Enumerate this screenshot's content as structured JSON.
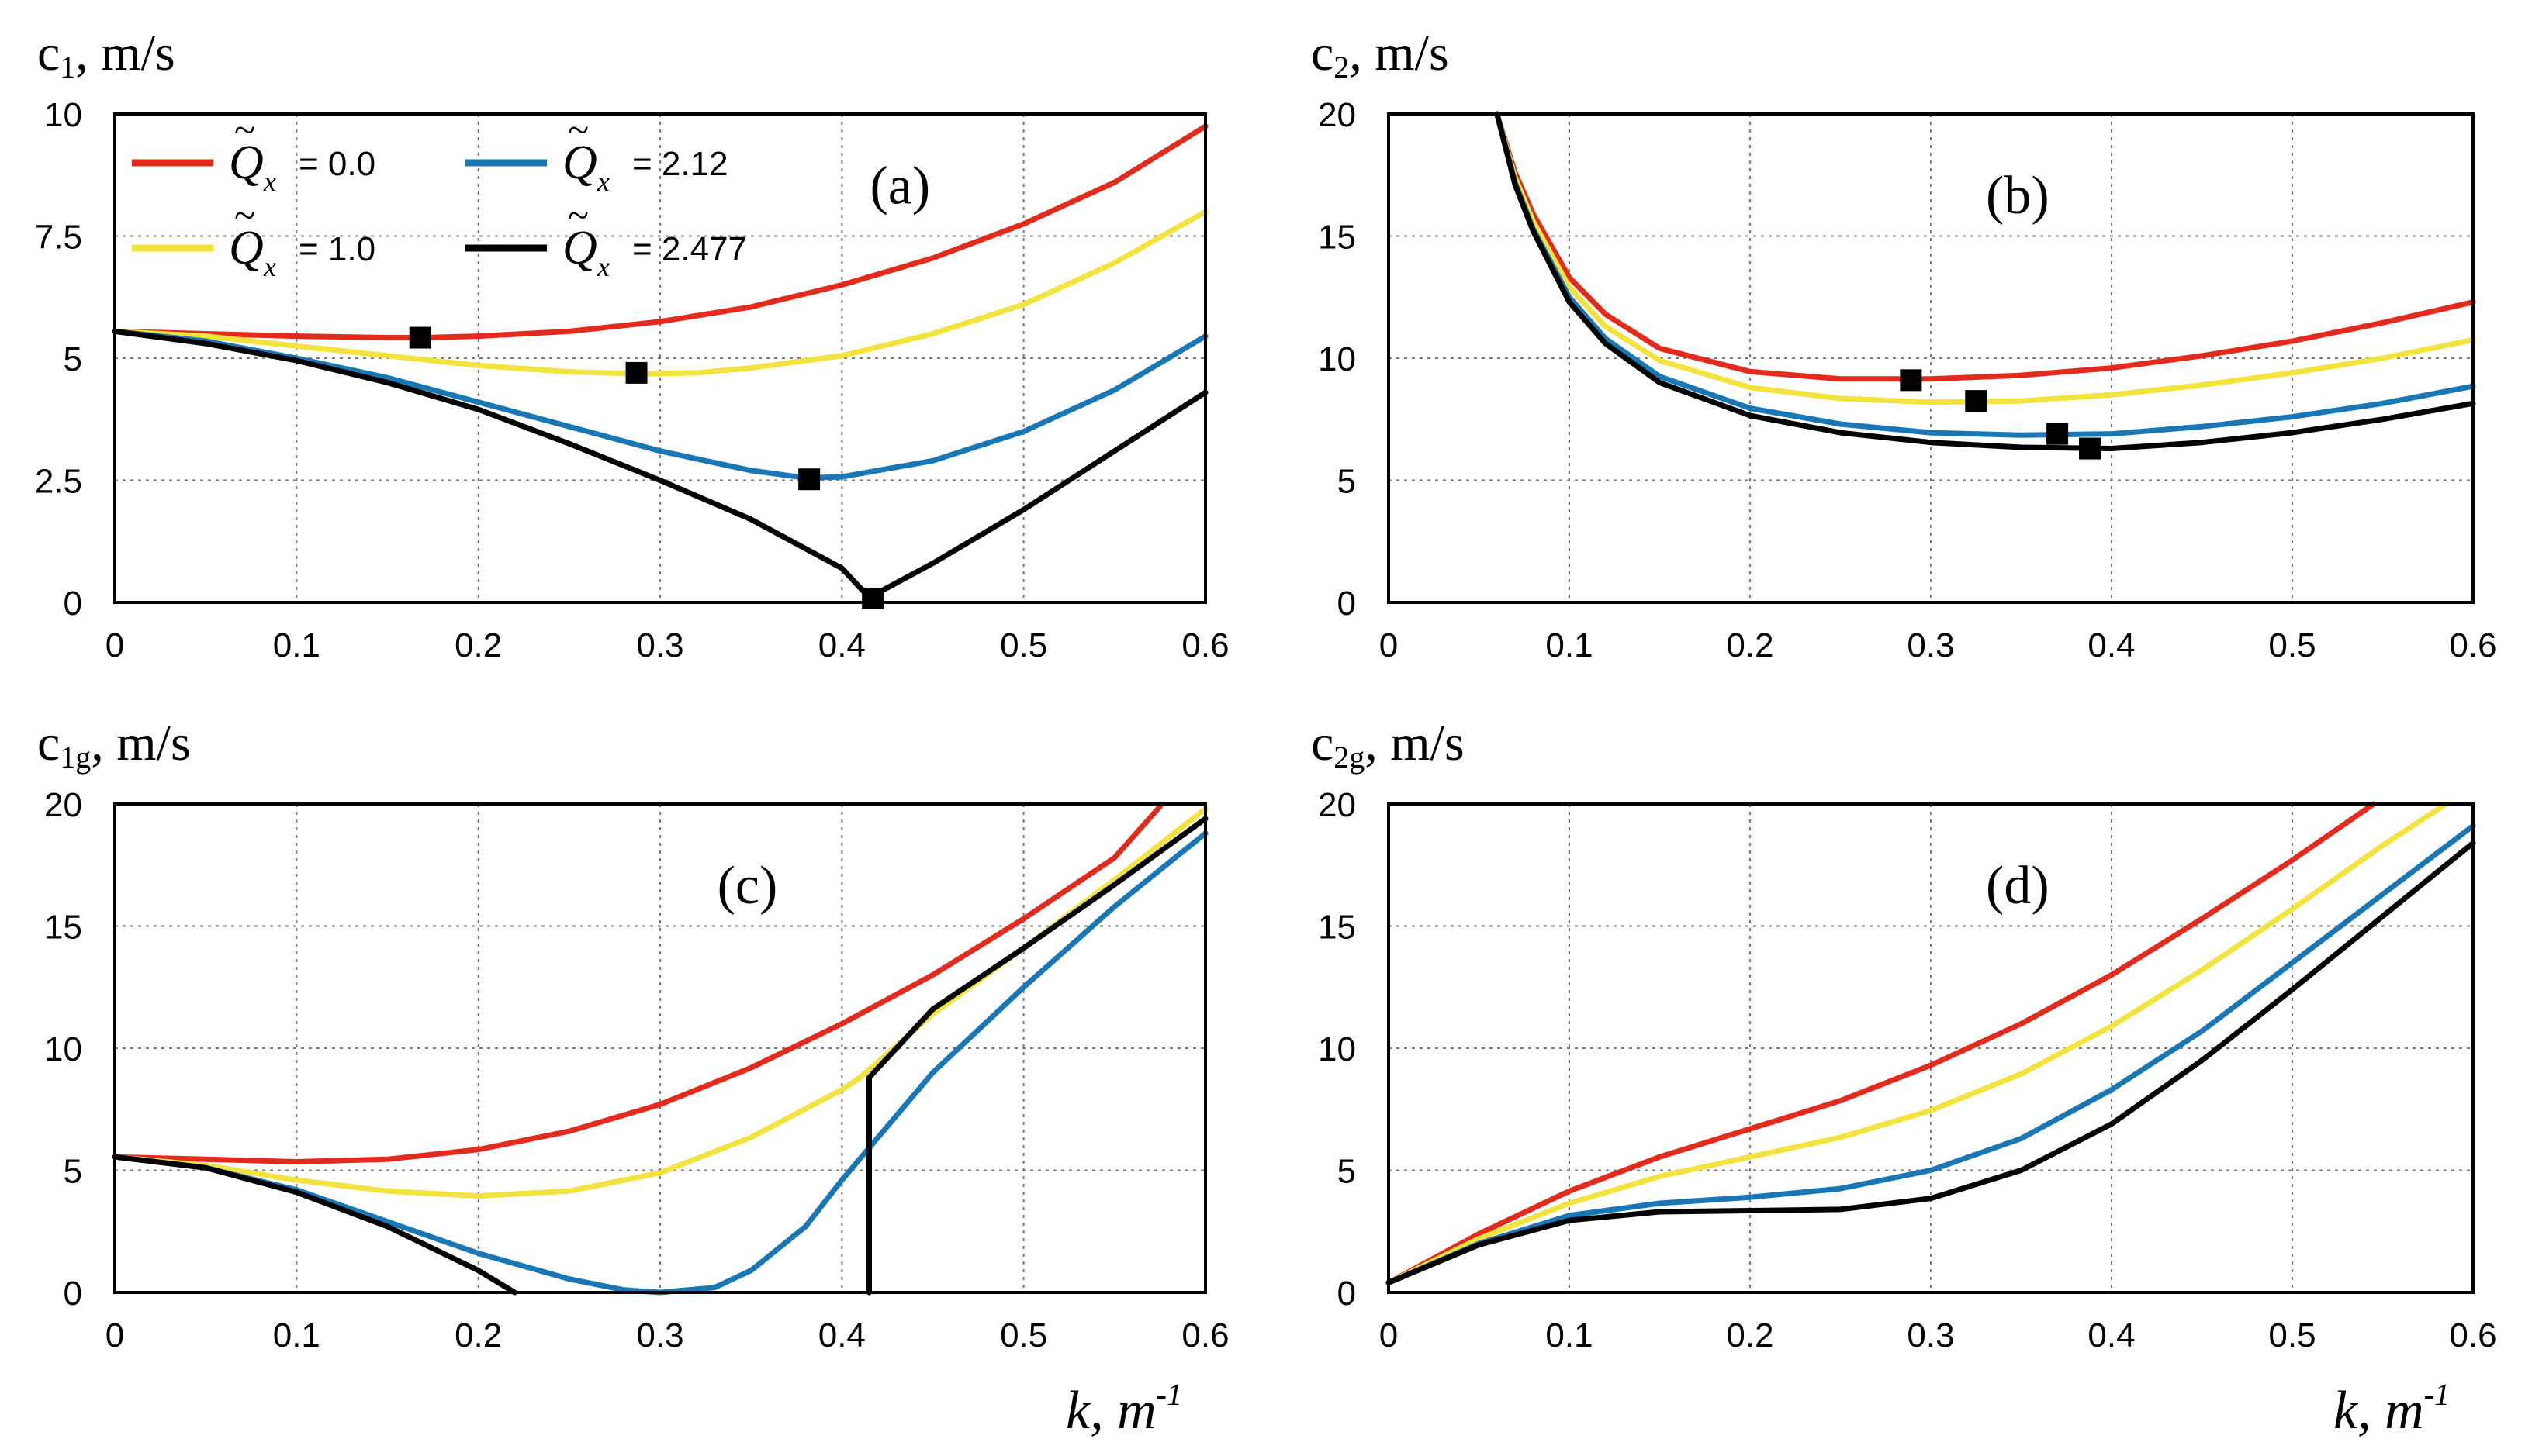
{
  "colors": {
    "red": "#e32b1d",
    "yellow": "#f2e33f",
    "blue": "#1977b5",
    "black": "#000000"
  },
  "legend": [
    {
      "var": "Q",
      "sub": "x",
      "label": "= 0.0",
      "color": "red"
    },
    {
      "var": "Q",
      "sub": "x",
      "label": "= 1.0",
      "color": "yellow"
    },
    {
      "var": "Q",
      "sub": "x",
      "label": "= 2.12",
      "color": "blue"
    },
    {
      "var": "Q",
      "sub": "x",
      "label": "= 2.477",
      "color": "black"
    }
  ],
  "xlabel": {
    "main": "k, m",
    "sup": "-1"
  },
  "chart_data": [
    {
      "id": "a",
      "type": "line",
      "panel_label": "(a)",
      "ylabel": {
        "main": "c",
        "sub": "1",
        "unit": ", m/s"
      },
      "xlim": [
        0,
        0.6
      ],
      "ylim": [
        0,
        10
      ],
      "xticks": [
        "0",
        "0.1",
        "0.2",
        "0.3",
        "0.4",
        "0.5",
        "0.6"
      ],
      "yticks": [
        "0",
        "2.5",
        "5",
        "7.5",
        "10"
      ],
      "grid": true,
      "legend_position": "top-left",
      "series": [
        {
          "color": "red",
          "x": [
            0,
            0.05,
            0.1,
            0.15,
            0.17,
            0.2,
            0.25,
            0.3,
            0.35,
            0.4,
            0.45,
            0.5,
            0.55,
            0.6
          ],
          "y": [
            5.55,
            5.5,
            5.45,
            5.42,
            5.42,
            5.45,
            5.55,
            5.75,
            6.05,
            6.5,
            7.05,
            7.75,
            8.6,
            9.75
          ]
        },
        {
          "color": "yellow",
          "x": [
            0,
            0.05,
            0.1,
            0.15,
            0.2,
            0.25,
            0.29,
            0.32,
            0.35,
            0.4,
            0.45,
            0.5,
            0.55,
            0.6
          ],
          "y": [
            5.55,
            5.45,
            5.25,
            5.05,
            4.85,
            4.72,
            4.68,
            4.7,
            4.8,
            5.05,
            5.5,
            6.1,
            6.95,
            8.0
          ]
        },
        {
          "color": "blue",
          "x": [
            0,
            0.05,
            0.1,
            0.15,
            0.2,
            0.25,
            0.3,
            0.35,
            0.38,
            0.4,
            0.45,
            0.5,
            0.55,
            0.6
          ],
          "y": [
            5.55,
            5.35,
            5.0,
            4.6,
            4.1,
            3.6,
            3.1,
            2.7,
            2.55,
            2.57,
            2.9,
            3.5,
            4.35,
            5.45
          ]
        },
        {
          "color": "black",
          "x": [
            0,
            0.05,
            0.1,
            0.15,
            0.2,
            0.25,
            0.3,
            0.35,
            0.4,
            0.415,
            0.45,
            0.5,
            0.55,
            0.6
          ],
          "y": [
            5.55,
            5.3,
            4.95,
            4.5,
            3.95,
            3.25,
            2.5,
            1.7,
            0.7,
            0.1,
            0.8,
            1.9,
            3.1,
            4.3
          ]
        }
      ],
      "markers": [
        {
          "x": 0.168,
          "y": 5.42
        },
        {
          "x": 0.287,
          "y": 4.7
        },
        {
          "x": 0.382,
          "y": 2.52
        },
        {
          "x": 0.417,
          "y": 0.08
        }
      ]
    },
    {
      "id": "b",
      "type": "line",
      "panel_label": "(b)",
      "ylabel": {
        "main": "c",
        "sub": "2",
        "unit": ", m/s"
      },
      "xlim": [
        0,
        0.6
      ],
      "ylim": [
        0,
        20
      ],
      "xticks": [
        "0",
        "0.1",
        "0.2",
        "0.3",
        "0.4",
        "0.5",
        "0.6"
      ],
      "yticks": [
        "0",
        "5",
        "10",
        "15",
        "20"
      ],
      "grid": true,
      "series": [
        {
          "color": "red",
          "x": [
            0.06,
            0.07,
            0.08,
            0.1,
            0.12,
            0.15,
            0.2,
            0.25,
            0.3,
            0.35,
            0.4,
            0.45,
            0.5,
            0.55,
            0.6
          ],
          "y": [
            20.0,
            17.6,
            15.9,
            13.3,
            11.8,
            10.4,
            9.45,
            9.15,
            9.15,
            9.3,
            9.6,
            10.1,
            10.7,
            11.45,
            12.3
          ]
        },
        {
          "color": "yellow",
          "x": [
            0.06,
            0.07,
            0.08,
            0.1,
            0.12,
            0.15,
            0.2,
            0.25,
            0.3,
            0.35,
            0.4,
            0.45,
            0.5,
            0.55,
            0.6
          ],
          "y": [
            20.0,
            17.4,
            15.6,
            12.9,
            11.3,
            9.9,
            8.8,
            8.35,
            8.2,
            8.25,
            8.5,
            8.9,
            9.4,
            10.0,
            10.75
          ]
        },
        {
          "color": "blue",
          "x": [
            0.06,
            0.07,
            0.08,
            0.1,
            0.12,
            0.15,
            0.2,
            0.25,
            0.3,
            0.35,
            0.4,
            0.45,
            0.5,
            0.55,
            0.6
          ],
          "y": [
            20.0,
            17.2,
            15.3,
            12.5,
            10.8,
            9.25,
            7.95,
            7.3,
            6.95,
            6.85,
            6.9,
            7.2,
            7.6,
            8.15,
            8.85
          ]
        },
        {
          "color": "black",
          "x": [
            0.06,
            0.07,
            0.08,
            0.1,
            0.12,
            0.15,
            0.2,
            0.25,
            0.3,
            0.35,
            0.4,
            0.45,
            0.5,
            0.55,
            0.6
          ],
          "y": [
            20.0,
            17.1,
            15.2,
            12.3,
            10.6,
            9.0,
            7.65,
            6.95,
            6.55,
            6.35,
            6.3,
            6.55,
            6.95,
            7.5,
            8.15
          ]
        }
      ],
      "markers": [
        {
          "x": 0.289,
          "y": 9.1
        },
        {
          "x": 0.325,
          "y": 8.25
        },
        {
          "x": 0.37,
          "y": 6.9
        },
        {
          "x": 0.388,
          "y": 6.3
        }
      ]
    },
    {
      "id": "c",
      "type": "line",
      "panel_label": "(c)",
      "ylabel": {
        "main": "c",
        "sub": "1g",
        "unit": ", m/s"
      },
      "xlim": [
        0,
        0.6
      ],
      "ylim": [
        0,
        20
      ],
      "xticks": [
        "0",
        "0.1",
        "0.2",
        "0.3",
        "0.4",
        "0.5",
        "0.6"
      ],
      "yticks": [
        "0",
        "5",
        "10",
        "15",
        "20"
      ],
      "grid": true,
      "series": [
        {
          "color": "red",
          "x": [
            0,
            0.05,
            0.1,
            0.15,
            0.2,
            0.25,
            0.3,
            0.35,
            0.4,
            0.45,
            0.5,
            0.55,
            0.575
          ],
          "y": [
            5.55,
            5.45,
            5.35,
            5.45,
            5.85,
            6.6,
            7.7,
            9.2,
            11.0,
            13.0,
            15.3,
            17.8,
            19.9
          ]
        },
        {
          "color": "yellow",
          "x": [
            0,
            0.05,
            0.1,
            0.15,
            0.2,
            0.25,
            0.3,
            0.35,
            0.4,
            0.41,
            0.45,
            0.5,
            0.55,
            0.6
          ],
          "y": [
            5.55,
            5.2,
            4.6,
            4.15,
            3.95,
            4.15,
            4.9,
            6.35,
            8.3,
            8.8,
            11.4,
            14.1,
            16.9,
            19.8
          ]
        },
        {
          "color": "blue",
          "x": [
            0,
            0.05,
            0.1,
            0.15,
            0.2,
            0.25,
            0.28,
            0.3,
            0.33,
            0.35,
            0.38,
            0.4,
            0.45,
            0.5,
            0.55,
            0.6
          ],
          "y": [
            5.55,
            5.1,
            4.2,
            2.9,
            1.6,
            0.55,
            0.1,
            0.0,
            0.2,
            0.9,
            2.7,
            4.6,
            9.0,
            12.5,
            15.8,
            18.8
          ]
        },
        {
          "color": "black",
          "x": [
            0,
            0.05,
            0.1,
            0.15,
            0.2,
            0.22
          ],
          "y": [
            5.55,
            5.1,
            4.1,
            2.7,
            0.9,
            0.0
          ]
        },
        {
          "color": "black",
          "x": [
            0.415,
            0.415,
            0.415,
            0.45,
            0.5,
            0.55,
            0.6
          ],
          "y": [
            0.0,
            8.8,
            8.8,
            11.6,
            14.1,
            16.7,
            19.4
          ]
        }
      ]
    },
    {
      "id": "d",
      "type": "line",
      "panel_label": "(d)",
      "ylabel": {
        "main": "c",
        "sub": "2g",
        "unit": ", m/s"
      },
      "xlim": [
        0,
        0.6
      ],
      "ylim": [
        0,
        20
      ],
      "xticks": [
        "0",
        "0.1",
        "0.2",
        "0.3",
        "0.4",
        "0.5",
        "0.6"
      ],
      "yticks": [
        "0",
        "5",
        "10",
        "15",
        "20"
      ],
      "grid": true,
      "series": [
        {
          "color": "red",
          "x": [
            0,
            0.05,
            0.1,
            0.15,
            0.2,
            0.25,
            0.3,
            0.35,
            0.4,
            0.45,
            0.5,
            0.545
          ],
          "y": [
            0.4,
            2.4,
            4.15,
            5.55,
            6.7,
            7.85,
            9.3,
            11.0,
            13.0,
            15.3,
            17.7,
            20.0
          ]
        },
        {
          "color": "yellow",
          "x": [
            0,
            0.05,
            0.1,
            0.15,
            0.2,
            0.25,
            0.3,
            0.35,
            0.4,
            0.45,
            0.5,
            0.55,
            0.585
          ],
          "y": [
            0.4,
            2.2,
            3.65,
            4.75,
            5.55,
            6.35,
            7.45,
            8.95,
            10.9,
            13.2,
            15.7,
            18.3,
            20.0
          ]
        },
        {
          "color": "blue",
          "x": [
            0,
            0.05,
            0.1,
            0.15,
            0.2,
            0.25,
            0.3,
            0.35,
            0.4,
            0.45,
            0.5,
            0.55,
            0.6
          ],
          "y": [
            0.4,
            2.0,
            3.15,
            3.65,
            3.9,
            4.25,
            5.0,
            6.3,
            8.3,
            10.7,
            13.5,
            16.3,
            19.1
          ]
        },
        {
          "color": "black",
          "x": [
            0,
            0.05,
            0.1,
            0.15,
            0.2,
            0.25,
            0.3,
            0.35,
            0.4,
            0.45,
            0.5,
            0.55,
            0.6
          ],
          "y": [
            0.4,
            1.95,
            2.95,
            3.3,
            3.35,
            3.4,
            3.85,
            5.0,
            6.9,
            9.5,
            12.4,
            15.4,
            18.4
          ]
        }
      ]
    }
  ]
}
